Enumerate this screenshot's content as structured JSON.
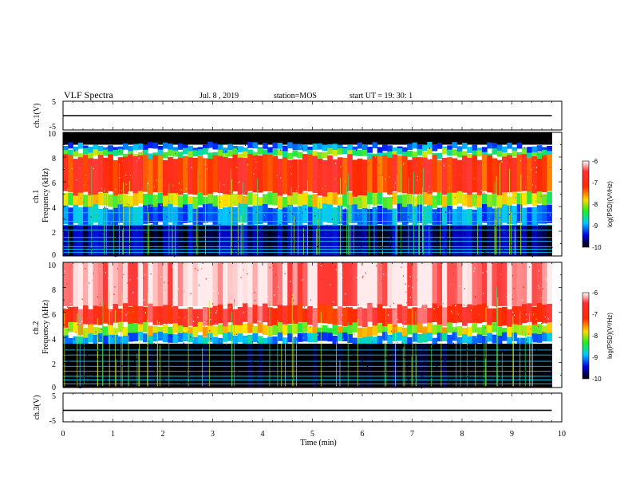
{
  "header": {
    "title": "VLF Spectra",
    "date": "Jul. 8 , 2019",
    "station": "station=MOS",
    "start": "start UT = 19: 30: 1"
  },
  "chart_data": [
    {
      "type": "line",
      "ylabel": "ch.1(V)",
      "ylim": [
        -5,
        5
      ],
      "yticks": [
        "5",
        "-5"
      ],
      "xlim": [
        0,
        10
      ],
      "series": [
        {
          "x": [
            0,
            9.8
          ],
          "values": [
            0,
            0
          ]
        }
      ]
    },
    {
      "type": "heatmap",
      "ylabel": "ch.1\nFrequency (kHz)",
      "ylim": [
        0,
        10
      ],
      "yticks": [
        "0",
        "2",
        "4",
        "6",
        "8",
        "10"
      ],
      "xlim": [
        0,
        10
      ],
      "colorbar": {
        "label": "log(PSD)(V²/Hz)",
        "range": [
          -10,
          -6
        ],
        "ticks": [
          "-6",
          "-7",
          "-8",
          "-9",
          "-10"
        ]
      },
      "bands": [
        {
          "from": 9.0,
          "to": 10.0,
          "level": -12
        },
        {
          "from": 8.5,
          "to": 9.0,
          "level": -8.8
        },
        {
          "from": 8.0,
          "to": 8.5,
          "level": -8.0
        },
        {
          "from": 5.0,
          "to": 8.0,
          "level": -6.8
        },
        {
          "from": 4.0,
          "to": 5.0,
          "level": -7.7
        },
        {
          "from": 2.5,
          "to": 4.0,
          "level": -8.7
        },
        {
          "from": 0.0,
          "to": 2.5,
          "level": -9.7
        }
      ],
      "lines_khz": [
        0.3,
        0.55,
        0.75,
        1.2,
        1.5,
        2.1,
        2.5,
        2.8,
        3.5
      ]
    },
    {
      "type": "heatmap",
      "ylabel": "ch.2\nFrequency (kHz)",
      "ylim": [
        0,
        10
      ],
      "yticks": [
        "0",
        "2",
        "4",
        "6",
        "8",
        "10"
      ],
      "xlim": [
        0,
        10
      ],
      "colorbar": {
        "label": "log(PSD)(V²/Hz)",
        "range": [
          -10,
          -6
        ],
        "ticks": [
          "-6",
          "-7",
          "-8",
          "-9",
          "-10"
        ]
      },
      "bands": [
        {
          "from": 6.5,
          "to": 10.0,
          "level": -6.1
        },
        {
          "from": 5.0,
          "to": 6.5,
          "level": -6.6
        },
        {
          "from": 4.2,
          "to": 5.0,
          "level": -7.6
        },
        {
          "from": 3.5,
          "to": 4.2,
          "level": -8.6
        },
        {
          "from": 0.0,
          "to": 3.5,
          "level": -10.2
        }
      ],
      "lines_khz": [
        0.3,
        0.6,
        0.9,
        1.3,
        1.7,
        2.1,
        2.6,
        3.0
      ]
    },
    {
      "type": "line",
      "ylabel": "ch.3(V)",
      "ylim": [
        -5,
        5
      ],
      "yticks": [
        "5",
        "-5"
      ],
      "xlabel": "Time (min)",
      "xlim": [
        0,
        10
      ],
      "xticks": [
        "0",
        "1",
        "2",
        "3",
        "4",
        "5",
        "6",
        "7",
        "8",
        "9",
        "10"
      ],
      "series": [
        {
          "x": [
            0,
            9.8
          ],
          "values": [
            -1,
            -1
          ]
        }
      ]
    }
  ]
}
